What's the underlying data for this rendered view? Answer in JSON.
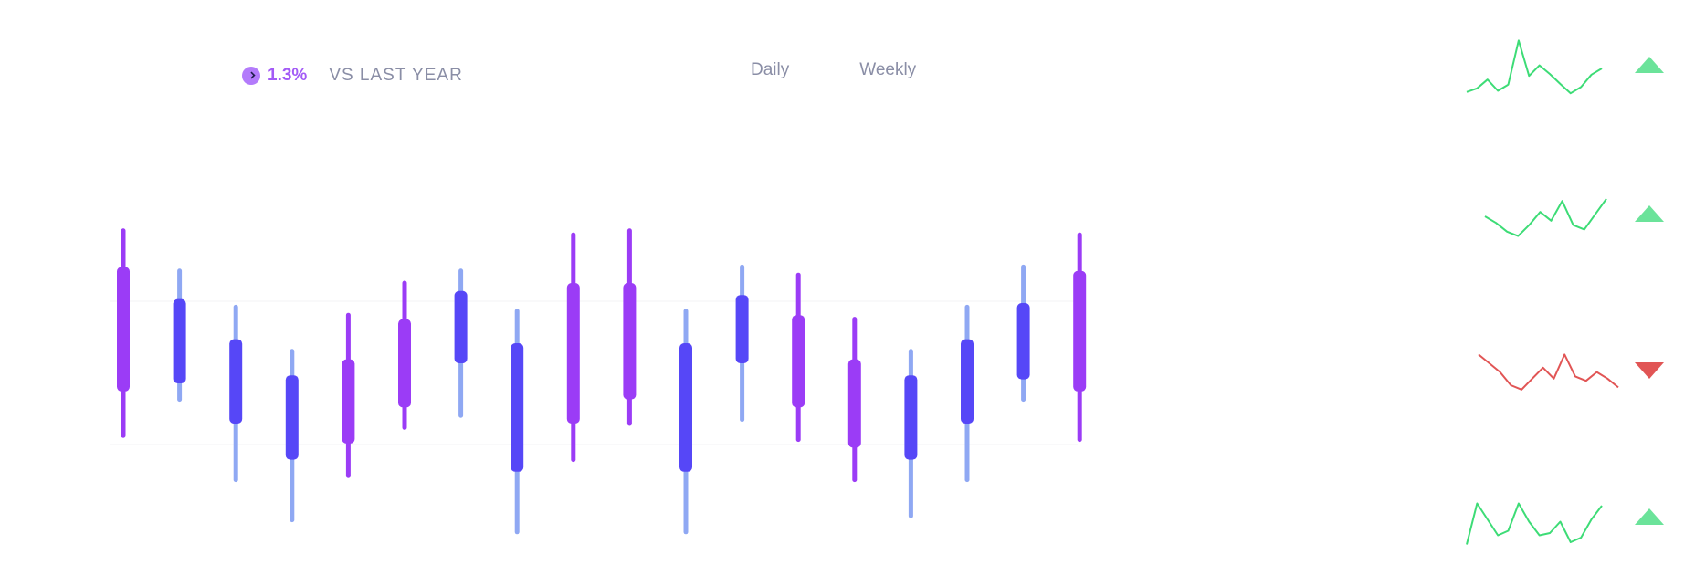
{
  "header": {
    "change_pct": "1.3%",
    "compare_label": "VS LAST YEAR"
  },
  "tabs": [
    {
      "label": "Daily"
    },
    {
      "label": "Weekly"
    }
  ],
  "colors": {
    "purple_body": "#9b3cf6",
    "purple_wick": "#9b3cf6",
    "blue_body": "#5647f7",
    "blue_wick": "#8fa8f3",
    "up": "#3ddc76",
    "down": "#e15555"
  },
  "chart_data": [
    {
      "type": "candlestick",
      "title": "",
      "xlabel": "",
      "ylabel": "",
      "ylim": [
        0,
        100
      ],
      "candles": [
        {
          "color": "purple",
          "wick_low": 37,
          "wick_high": 88,
          "body_low": 48,
          "body_high": 79
        },
        {
          "color": "blue",
          "wick_low": 46,
          "wick_high": 78,
          "body_low": 50,
          "body_high": 71
        },
        {
          "color": "blue",
          "wick_low": 26,
          "wick_high": 69,
          "body_low": 40,
          "body_high": 61
        },
        {
          "color": "blue",
          "wick_low": 16,
          "wick_high": 58,
          "body_low": 31,
          "body_high": 52
        },
        {
          "color": "purple",
          "wick_low": 27,
          "wick_high": 67,
          "body_low": 35,
          "body_high": 56
        },
        {
          "color": "purple",
          "wick_low": 39,
          "wick_high": 75,
          "body_low": 44,
          "body_high": 66
        },
        {
          "color": "blue",
          "wick_low": 42,
          "wick_high": 78,
          "body_low": 55,
          "body_high": 73
        },
        {
          "color": "blue",
          "wick_low": 13,
          "wick_high": 68,
          "body_low": 28,
          "body_high": 60
        },
        {
          "color": "purple",
          "wick_low": 31,
          "wick_high": 87,
          "body_low": 40,
          "body_high": 75
        },
        {
          "color": "purple",
          "wick_low": 40,
          "wick_high": 88,
          "body_low": 46,
          "body_high": 75
        },
        {
          "color": "blue",
          "wick_low": 13,
          "wick_high": 68,
          "body_low": 28,
          "body_high": 60
        },
        {
          "color": "blue",
          "wick_low": 41,
          "wick_high": 79,
          "body_low": 55,
          "body_high": 72
        },
        {
          "color": "purple",
          "wick_low": 36,
          "wick_high": 77,
          "body_low": 44,
          "body_high": 67
        },
        {
          "color": "purple",
          "wick_low": 26,
          "wick_high": 66,
          "body_low": 34,
          "body_high": 56
        },
        {
          "color": "blue",
          "wick_low": 17,
          "wick_high": 58,
          "body_low": 31,
          "body_high": 52
        },
        {
          "color": "blue",
          "wick_low": 26,
          "wick_high": 69,
          "body_low": 40,
          "body_high": 61
        },
        {
          "color": "blue",
          "wick_low": 46,
          "wick_high": 79,
          "body_low": 51,
          "body_high": 70
        },
        {
          "color": "purple",
          "wick_low": 36,
          "wick_high": 87,
          "body_low": 48,
          "body_high": 78
        }
      ]
    },
    {
      "type": "line",
      "name": "",
      "trend": "up",
      "values": [
        12,
        18,
        32,
        14,
        24,
        95,
        38,
        55,
        41,
        25,
        10,
        20,
        40,
        50
      ]
    },
    {
      "type": "line",
      "name": "",
      "trend": "up",
      "values": [
        50,
        35,
        15,
        5,
        30,
        60,
        40,
        85,
        30,
        20,
        55,
        90
      ]
    },
    {
      "type": "line",
      "name": "",
      "trend": "down",
      "values": [
        95,
        75,
        55,
        25,
        15,
        40,
        65,
        40,
        95,
        45,
        35,
        55,
        40,
        20
      ]
    },
    {
      "type": "line",
      "name": "",
      "trend": "up",
      "values": [
        5,
        95,
        60,
        25,
        35,
        95,
        55,
        25,
        30,
        55,
        10,
        20,
        60,
        90
      ]
    }
  ]
}
